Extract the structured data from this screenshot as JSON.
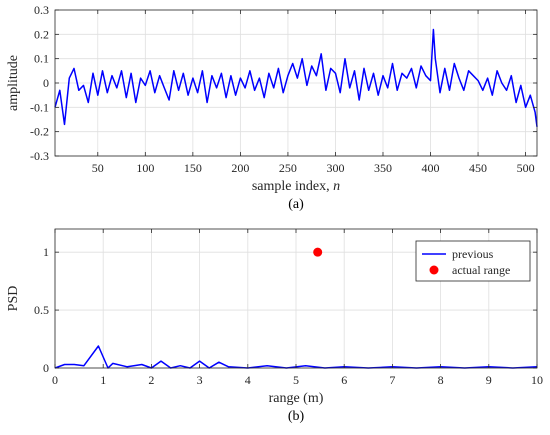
{
  "chart_data": [
    {
      "id": "a",
      "type": "line",
      "caption": "(a)",
      "xlabel": "sample index, ",
      "xlabel_var": "n",
      "ylabel": "amplitude",
      "xlim": [
        5,
        512
      ],
      "ylim": [
        -0.3,
        0.3
      ],
      "xticks": [
        50,
        100,
        150,
        200,
        250,
        300,
        350,
        400,
        450,
        500
      ],
      "yticks": [
        -0.3,
        -0.2,
        -0.1,
        0,
        0.1,
        0.2,
        0.3
      ],
      "ytick_labels": [
        "-0.3",
        "-0.2",
        "-0.1",
        "0",
        "0.1",
        "0.2",
        "0.3"
      ],
      "grid": true,
      "color": "#0000ff",
      "series": [
        {
          "x": [
            5,
            10,
            15,
            20,
            25,
            30,
            35,
            40,
            45,
            50,
            55,
            60,
            65,
            70,
            75,
            80,
            85,
            90,
            95,
            100,
            105,
            110,
            115,
            120,
            125,
            130,
            135,
            140,
            145,
            150,
            155,
            160,
            165,
            170,
            175,
            180,
            185,
            190,
            195,
            200,
            205,
            210,
            215,
            220,
            225,
            230,
            235,
            240,
            245,
            250,
            255,
            260,
            265,
            270,
            275,
            280,
            285,
            290,
            295,
            300,
            305,
            310,
            315,
            320,
            325,
            330,
            335,
            340,
            345,
            350,
            355,
            360,
            365,
            370,
            375,
            380,
            385,
            390,
            395,
            400,
            403,
            405,
            410,
            415,
            420,
            425,
            430,
            435,
            440,
            445,
            450,
            455,
            460,
            465,
            470,
            475,
            480,
            485,
            490,
            495,
            500,
            505,
            510,
            512
          ],
          "y": [
            -0.1,
            -0.03,
            -0.17,
            0.02,
            0.06,
            -0.03,
            -0.01,
            -0.08,
            0.04,
            -0.05,
            0.05,
            -0.04,
            0.03,
            -0.02,
            0.05,
            -0.06,
            0.04,
            -0.08,
            0.02,
            -0.01,
            0.05,
            -0.04,
            0.03,
            -0.02,
            -0.07,
            0.05,
            -0.03,
            0.04,
            -0.05,
            0.02,
            -0.04,
            0.05,
            -0.08,
            0.03,
            -0.02,
            0.04,
            -0.06,
            0.03,
            -0.05,
            0.02,
            -0.02,
            0.05,
            -0.03,
            0.02,
            -0.06,
            0.04,
            -0.02,
            0.06,
            -0.04,
            0.03,
            0.08,
            0.02,
            0.1,
            -0.01,
            0.07,
            0.03,
            0.12,
            -0.03,
            0.06,
            0.04,
            -0.04,
            0.1,
            -0.02,
            0.05,
            -0.07,
            0.06,
            -0.03,
            0.04,
            -0.05,
            0.03,
            -0.02,
            0.08,
            -0.03,
            0.04,
            0.02,
            0.06,
            -0.02,
            0.07,
            0.03,
            0.01,
            0.22,
            0.1,
            -0.04,
            0.06,
            -0.03,
            0.08,
            0.02,
            -0.03,
            0.05,
            0.03,
            0.01,
            -0.03,
            0.02,
            -0.05,
            0.05,
            0.0,
            -0.03,
            0.03,
            -0.08,
            -0.01,
            -0.1,
            -0.05,
            -0.12,
            -0.18
          ]
        }
      ]
    },
    {
      "id": "b",
      "type": "line",
      "caption": "(b)",
      "xlabel": "range (m)",
      "ylabel": "PSD",
      "xlim": [
        0,
        10
      ],
      "ylim": [
        0,
        1.2
      ],
      "xticks": [
        0,
        1,
        2,
        3,
        4,
        5,
        6,
        7,
        8,
        9,
        10
      ],
      "yticks": [
        0,
        0.5,
        1
      ],
      "ytick_labels": [
        "0",
        "0.5",
        "1"
      ],
      "grid": true,
      "legend": {
        "position": "top-right",
        "entries": [
          "previous",
          "actual range"
        ]
      },
      "series": [
        {
          "name": "previous",
          "color": "#0000ff",
          "x": [
            0,
            0.2,
            0.4,
            0.6,
            0.9,
            1.1,
            1.2,
            1.5,
            1.8,
            2.0,
            2.2,
            2.4,
            2.6,
            2.8,
            3.0,
            3.2,
            3.4,
            3.6,
            4.0,
            4.4,
            4.8,
            5.2,
            5.6,
            6.0,
            6.5,
            7.0,
            7.5,
            8.0,
            8.5,
            9.0,
            9.5,
            10.0
          ],
          "y": [
            0.0,
            0.03,
            0.03,
            0.02,
            0.19,
            0.0,
            0.04,
            0.01,
            0.03,
            0.0,
            0.06,
            0.0,
            0.02,
            0.0,
            0.06,
            0.0,
            0.05,
            0.01,
            0.0,
            0.02,
            0.0,
            0.02,
            0.0,
            0.01,
            0.0,
            0.01,
            0.0,
            0.01,
            0.0,
            0.01,
            0.0,
            0.01
          ]
        },
        {
          "name": "actual range",
          "type": "scatter",
          "color": "#ff0000",
          "x": [
            5.45
          ],
          "y": [
            1.0
          ]
        }
      ]
    }
  ]
}
